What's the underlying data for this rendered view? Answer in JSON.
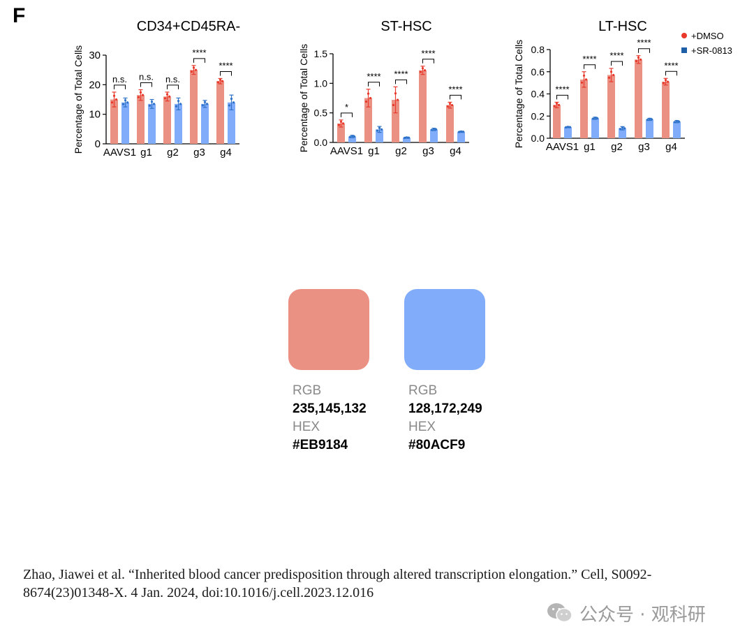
{
  "panel_letter": "F",
  "legend": [
    {
      "label": "+DMSO",
      "color": "#E8392B",
      "marker": "circle"
    },
    {
      "label": "+SR-0813",
      "color": "#1F5FA8",
      "marker": "square"
    }
  ],
  "colors": {
    "dmso_bar": "#EB9184",
    "sr_bar": "#80ACF9",
    "dmso_point": "#E8392B",
    "sr_point": "#2E73C9"
  },
  "chart_data": [
    {
      "type": "bar",
      "title": "CD34+CD45RA-",
      "ylabel": "Percentage of Total Cells",
      "xlabel": "",
      "ylim": [
        0,
        30
      ],
      "yticks": [
        0,
        10,
        20,
        30
      ],
      "ytick_labels": [
        "0",
        "10",
        "20",
        "30"
      ],
      "categories": [
        "AAVS1",
        "g1",
        "g2",
        "g3",
        "g4"
      ],
      "series": [
        {
          "name": "+DMSO",
          "values": [
            15,
            16.5,
            16,
            25,
            21.2
          ],
          "errors": [
            2.5,
            1.8,
            1.5,
            1.5,
            0.9
          ]
        },
        {
          "name": "+SR-0813",
          "values": [
            14,
            13.5,
            13.5,
            13.5,
            14
          ],
          "errors": [
            1.5,
            1.5,
            2.0,
            1.2,
            2.5
          ]
        }
      ],
      "significance": [
        "n.s.",
        "n.s.",
        "n.s.",
        "****",
        "****"
      ]
    },
    {
      "type": "bar",
      "title": "ST-HSC",
      "ylabel": "Percentage of Total Cells",
      "xlabel": "",
      "ylim": [
        0,
        1.5
      ],
      "yticks": [
        0,
        0.5,
        1.0,
        1.5
      ],
      "ytick_labels": [
        "0.0",
        "0.5",
        "1.0",
        "1.5"
      ],
      "categories": [
        "AAVS1",
        "g1",
        "g2",
        "g3",
        "g4"
      ],
      "series": [
        {
          "name": "+DMSO",
          "values": [
            0.32,
            0.75,
            0.72,
            1.22,
            0.63
          ],
          "errors": [
            0.06,
            0.15,
            0.22,
            0.07,
            0.05
          ]
        },
        {
          "name": "+SR-0813",
          "values": [
            0.1,
            0.22,
            0.08,
            0.22,
            0.18
          ],
          "errors": [
            0.02,
            0.05,
            0.01,
            0.02,
            0.01
          ]
        }
      ],
      "significance": [
        "*",
        "****",
        "****",
        "****",
        "****"
      ]
    },
    {
      "type": "bar",
      "title": "LT-HSC",
      "ylabel": "Percentage of Total Cells",
      "xlabel": "",
      "ylim": [
        0,
        0.8
      ],
      "yticks": [
        0,
        0.2,
        0.4,
        0.6,
        0.8
      ],
      "ytick_labels": [
        "0.0",
        "0.2",
        "0.4",
        "0.6",
        "0.8"
      ],
      "categories": [
        "AAVS1",
        "g1",
        "g2",
        "g3",
        "g4"
      ],
      "series": [
        {
          "name": "+DMSO",
          "values": [
            0.3,
            0.53,
            0.57,
            0.71,
            0.51
          ],
          "errors": [
            0.025,
            0.07,
            0.06,
            0.035,
            0.03
          ]
        },
        {
          "name": "+SR-0813",
          "values": [
            0.1,
            0.18,
            0.09,
            0.17,
            0.15
          ],
          "errors": [
            0.005,
            0.01,
            0.015,
            0.01,
            0.01
          ]
        }
      ],
      "significance": [
        "****",
        "****",
        "****",
        "****",
        "****"
      ]
    }
  ],
  "swatches": [
    {
      "color": "#EB9184",
      "rgb_label": "RGB",
      "rgb": "235,145,132",
      "hex_label": "HEX",
      "hex": "#EB9184"
    },
    {
      "color": "#80ACF9",
      "rgb_label": "RGB",
      "rgb": "128,172,249",
      "hex_label": "HEX",
      "hex": "#80ACF9"
    }
  ],
  "citation": "Zhao, Jiawei et al. “Inherited blood cancer predisposition through altered transcription elongation.” Cell, S0092-8674(23)01348-X. 4 Jan. 2024, doi:10.1016/j.cell.2023.12.016",
  "watermark": "公众号 · 观科研"
}
